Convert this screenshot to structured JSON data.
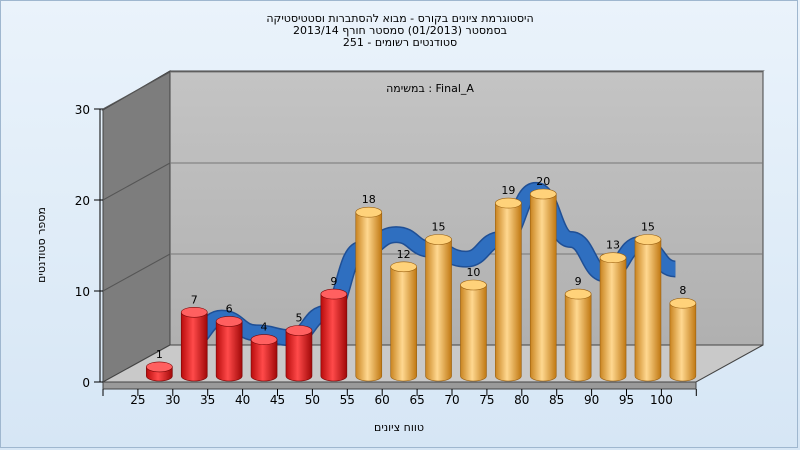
{
  "chart_data": {
    "type": "bar",
    "title_lines": [
      "היסטוגרמת ציונים בקורס - מבוא להסתברות וסטטיסטיקה",
      "בסמסטר  (01/2013)  סמסטר חורף 2013/14",
      "סטודנטים רשומים - 251"
    ],
    "annotation": "במשימה : Final_A",
    "xlabel": "טווח ציונים",
    "ylabel": "מספר סטודנטים",
    "categories": [
      "25",
      "30",
      "35",
      "40",
      "45",
      "50",
      "55",
      "60",
      "65",
      "70",
      "75",
      "80",
      "85",
      "90",
      "95",
      "100"
    ],
    "values": [
      1,
      7,
      6,
      4,
      5,
      9,
      18,
      12,
      15,
      10,
      19,
      20,
      9,
      13,
      15,
      8
    ],
    "y_ticks": [
      "0",
      "10",
      "20",
      "30"
    ],
    "ylim": [
      0,
      30
    ],
    "failing_color": "#e02020",
    "passing_color": "#f0a830",
    "curve_color": "#2f6fc0",
    "grid": true
  }
}
